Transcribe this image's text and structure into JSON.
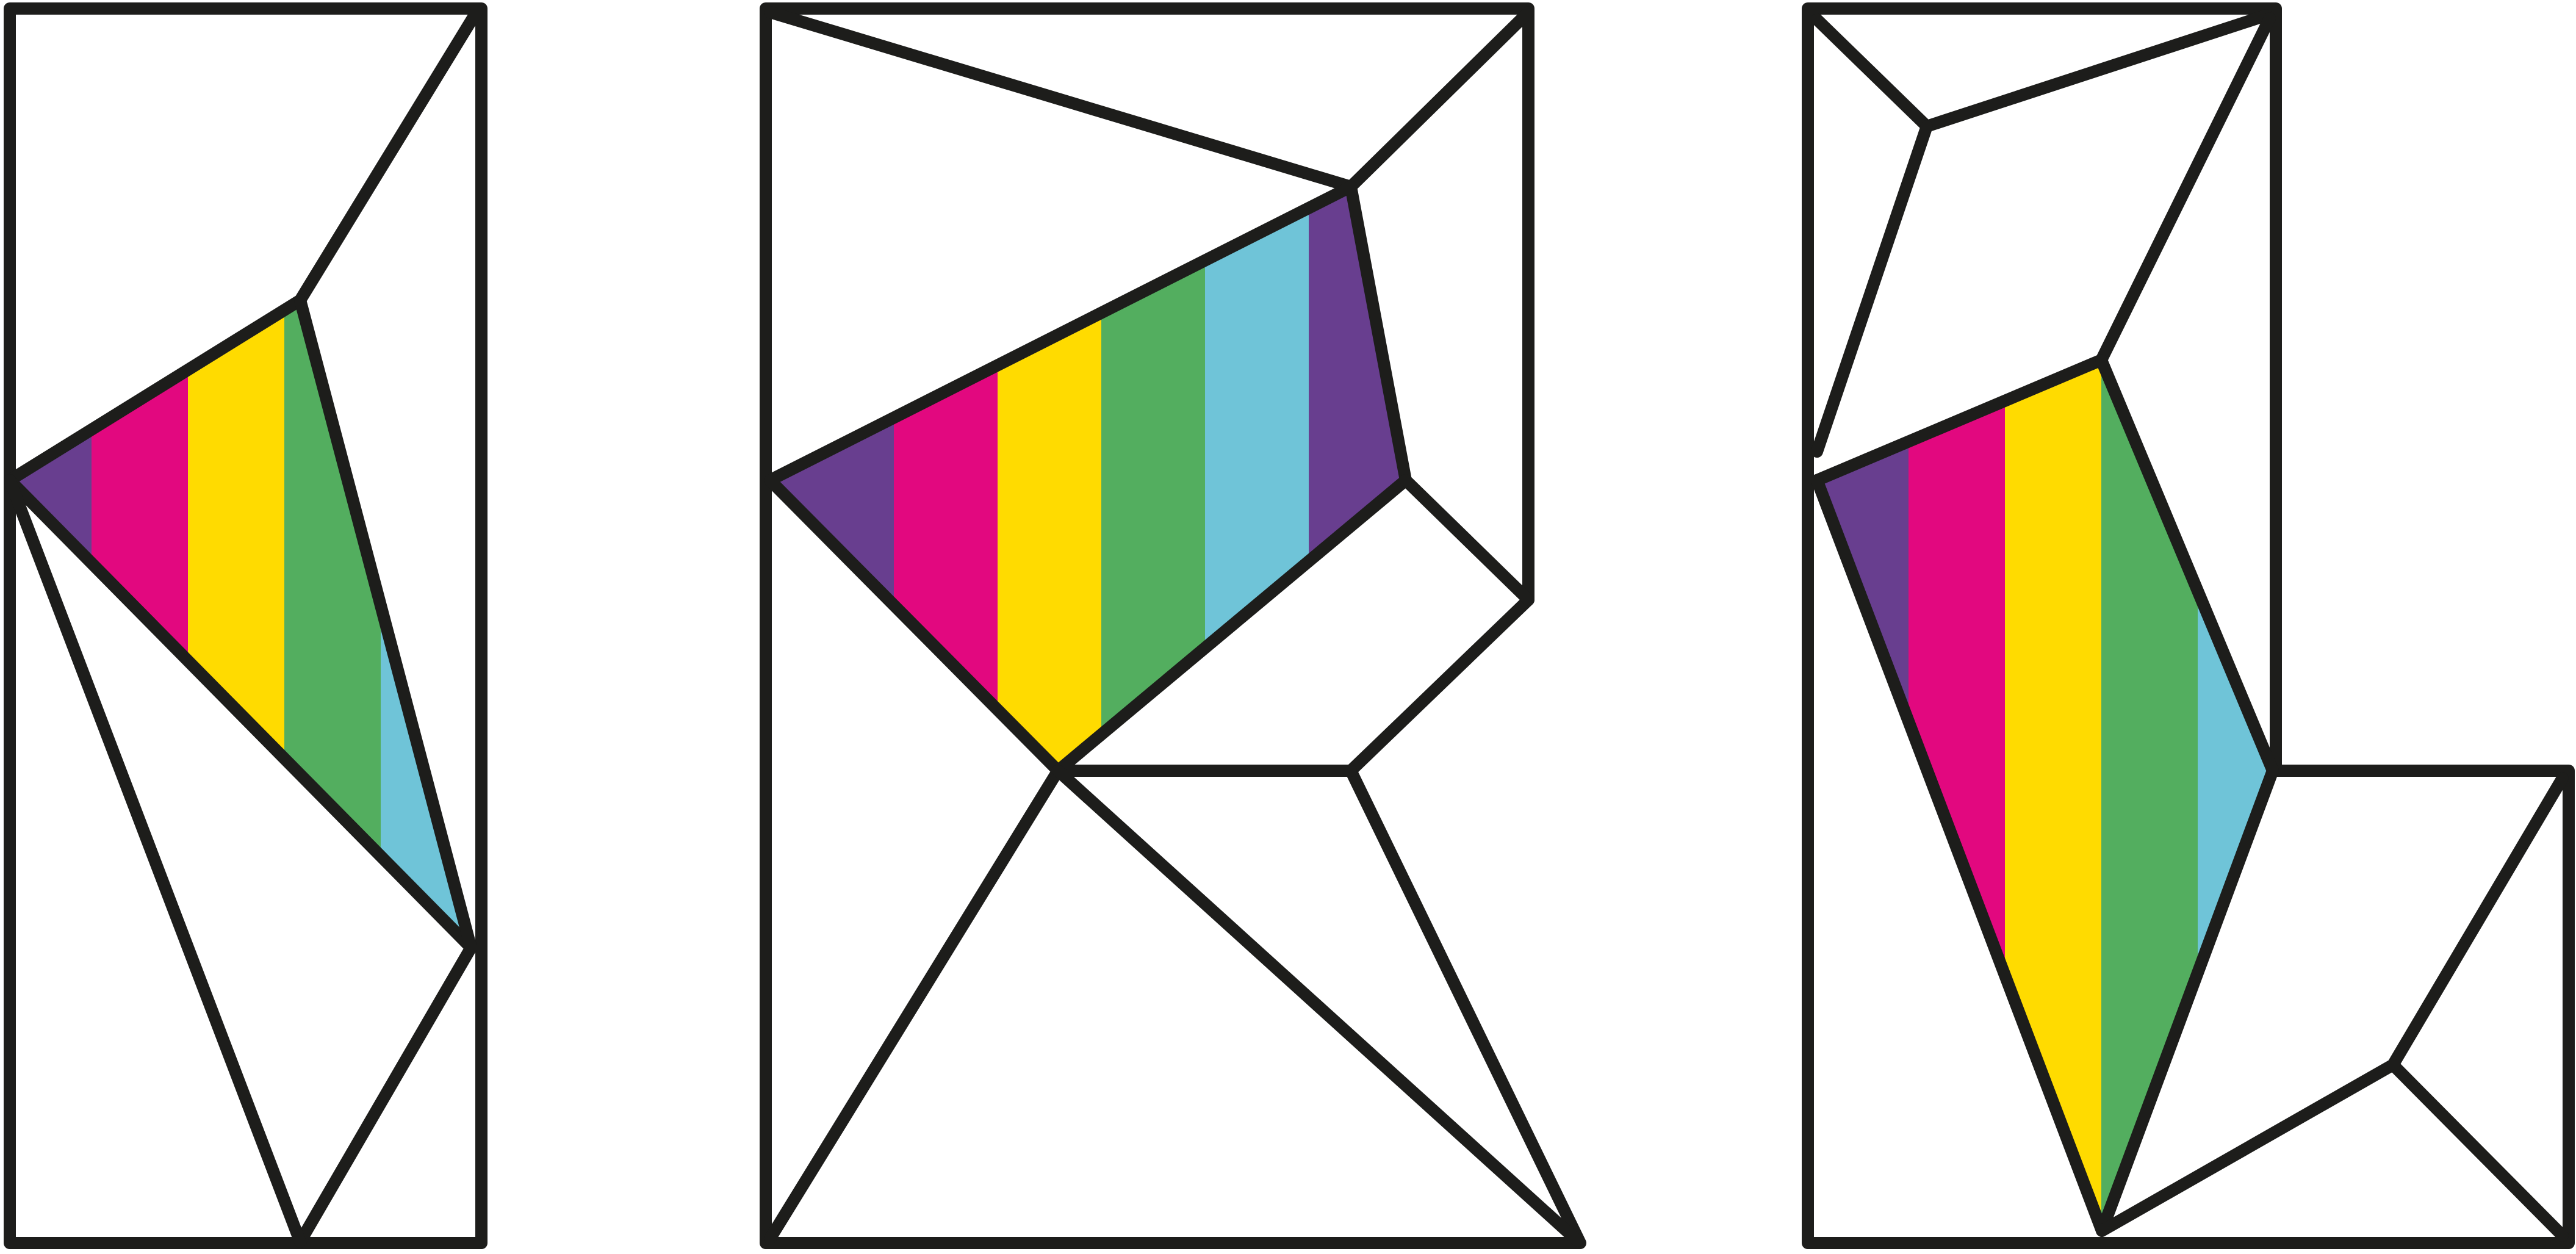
{
  "logo": {
    "letters": [
      "I",
      "R",
      "L"
    ],
    "stroke_color": "#1d1d1b",
    "background_color": "#ffffff",
    "stripe_colors": [
      "#683e8f",
      "#e2087f",
      "#ffdb00",
      "#53ae5f",
      "#6fc4d8",
      "#683e8f"
    ]
  }
}
